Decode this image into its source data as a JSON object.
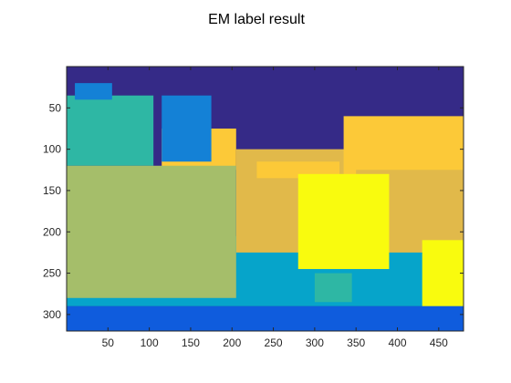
{
  "chart_data": {
    "type": "heatmap",
    "title": "EM label result",
    "xlabel": "",
    "ylabel": "",
    "x_ticks": [
      50,
      100,
      150,
      200,
      250,
      300,
      350,
      400,
      450
    ],
    "y_ticks": [
      50,
      100,
      150,
      200,
      250,
      300
    ],
    "xlim": [
      0,
      480
    ],
    "ylim": [
      0,
      320
    ],
    "y_direction": "reverse",
    "grid": false,
    "colormap": "parula",
    "labels": [
      {
        "label": 1,
        "color": "#352A87"
      },
      {
        "label": 2,
        "color": "#0F5CDD"
      },
      {
        "label": 3,
        "color": "#1481D6"
      },
      {
        "label": 4,
        "color": "#06A4CA"
      },
      {
        "label": 5,
        "color": "#2EB7A4"
      },
      {
        "label": 6,
        "color": "#87BF77"
      },
      {
        "label": 7,
        "color": "#A5BE6A"
      },
      {
        "label": 8,
        "color": "#E1B94A"
      },
      {
        "label": 9,
        "color": "#FCC938"
      },
      {
        "label": 10,
        "color": "#F9FB0E"
      }
    ],
    "regions": [
      {
        "label": 1,
        "x": [
          0,
          480
        ],
        "y": [
          0,
          320
        ]
      },
      {
        "label": 4,
        "x": [
          0,
          480
        ],
        "y": [
          205,
          290
        ]
      },
      {
        "label": 8,
        "x": [
          205,
          480
        ],
        "y": [
          100,
          225
        ]
      },
      {
        "label": 9,
        "x": [
          115,
          205
        ],
        "y": [
          75,
          125
        ]
      },
      {
        "label": 9,
        "x": [
          335,
          480
        ],
        "y": [
          60,
          180
        ]
      },
      {
        "label": 8,
        "x": [
          350,
          480
        ],
        "y": [
          125,
          210
        ]
      },
      {
        "label": 9,
        "x": [
          230,
          330
        ],
        "y": [
          115,
          135
        ]
      },
      {
        "label": 5,
        "x": [
          0,
          105
        ],
        "y": [
          35,
          120
        ]
      },
      {
        "label": 3,
        "x": [
          115,
          175
        ],
        "y": [
          35,
          115
        ]
      },
      {
        "label": 3,
        "x": [
          10,
          55
        ],
        "y": [
          20,
          40
        ]
      },
      {
        "label": 7,
        "x": [
          0,
          205
        ],
        "y": [
          120,
          280
        ]
      },
      {
        "label": 10,
        "x": [
          280,
          390
        ],
        "y": [
          130,
          245
        ]
      },
      {
        "label": 10,
        "x": [
          430,
          480
        ],
        "y": [
          210,
          290
        ]
      },
      {
        "label": 5,
        "x": [
          300,
          345
        ],
        "y": [
          250,
          285
        ]
      },
      {
        "label": 2,
        "x": [
          0,
          480
        ],
        "y": [
          290,
          320
        ]
      }
    ]
  }
}
